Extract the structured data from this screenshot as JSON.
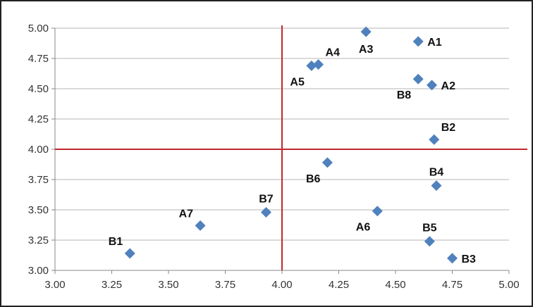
{
  "chart_data": {
    "type": "scatter",
    "title": "",
    "xlabel": "",
    "ylabel": "",
    "xlim": [
      3.0,
      5.0
    ],
    "ylim": [
      3.0,
      5.0
    ],
    "x_ticks": [
      "3.00",
      "3.25",
      "3.50",
      "3.75",
      "4.00",
      "4.25",
      "4.50",
      "4.75",
      "5.00"
    ],
    "y_ticks": [
      "3.00",
      "3.25",
      "3.50",
      "3.75",
      "4.00",
      "4.25",
      "4.50",
      "4.75",
      "5.00"
    ],
    "grid": "horizontal",
    "reference_lines": {
      "x": 4.0,
      "y": 4.0,
      "color": "#c0282d"
    },
    "marker_color": "#4f81bd",
    "points": [
      {
        "label": "A1",
        "x": 4.6,
        "y": 4.89,
        "label_pos": "right"
      },
      {
        "label": "A2",
        "x": 4.66,
        "y": 4.53,
        "label_pos": "right"
      },
      {
        "label": "A3",
        "x": 4.37,
        "y": 4.97,
        "label_pos": "below"
      },
      {
        "label": "A4",
        "x": 4.16,
        "y": 4.7,
        "label_pos": "above-right"
      },
      {
        "label": "A5",
        "x": 4.13,
        "y": 4.69,
        "label_pos": "below-left"
      },
      {
        "label": "A6",
        "x": 4.42,
        "y": 3.49,
        "label_pos": "below-left"
      },
      {
        "label": "A7",
        "x": 3.64,
        "y": 3.37,
        "label_pos": "above-left"
      },
      {
        "label": "B1",
        "x": 3.33,
        "y": 3.14,
        "label_pos": "above-left"
      },
      {
        "label": "B2",
        "x": 4.67,
        "y": 4.08,
        "label_pos": "above-right"
      },
      {
        "label": "B3",
        "x": 4.75,
        "y": 3.1,
        "label_pos": "right"
      },
      {
        "label": "B4",
        "x": 4.68,
        "y": 3.7,
        "label_pos": "above"
      },
      {
        "label": "B5",
        "x": 4.65,
        "y": 3.24,
        "label_pos": "above"
      },
      {
        "label": "B6",
        "x": 4.2,
        "y": 3.89,
        "label_pos": "below-left"
      },
      {
        "label": "B7",
        "x": 3.93,
        "y": 3.48,
        "label_pos": "above"
      },
      {
        "label": "B8",
        "x": 4.6,
        "y": 4.58,
        "label_pos": "below-left"
      }
    ]
  }
}
